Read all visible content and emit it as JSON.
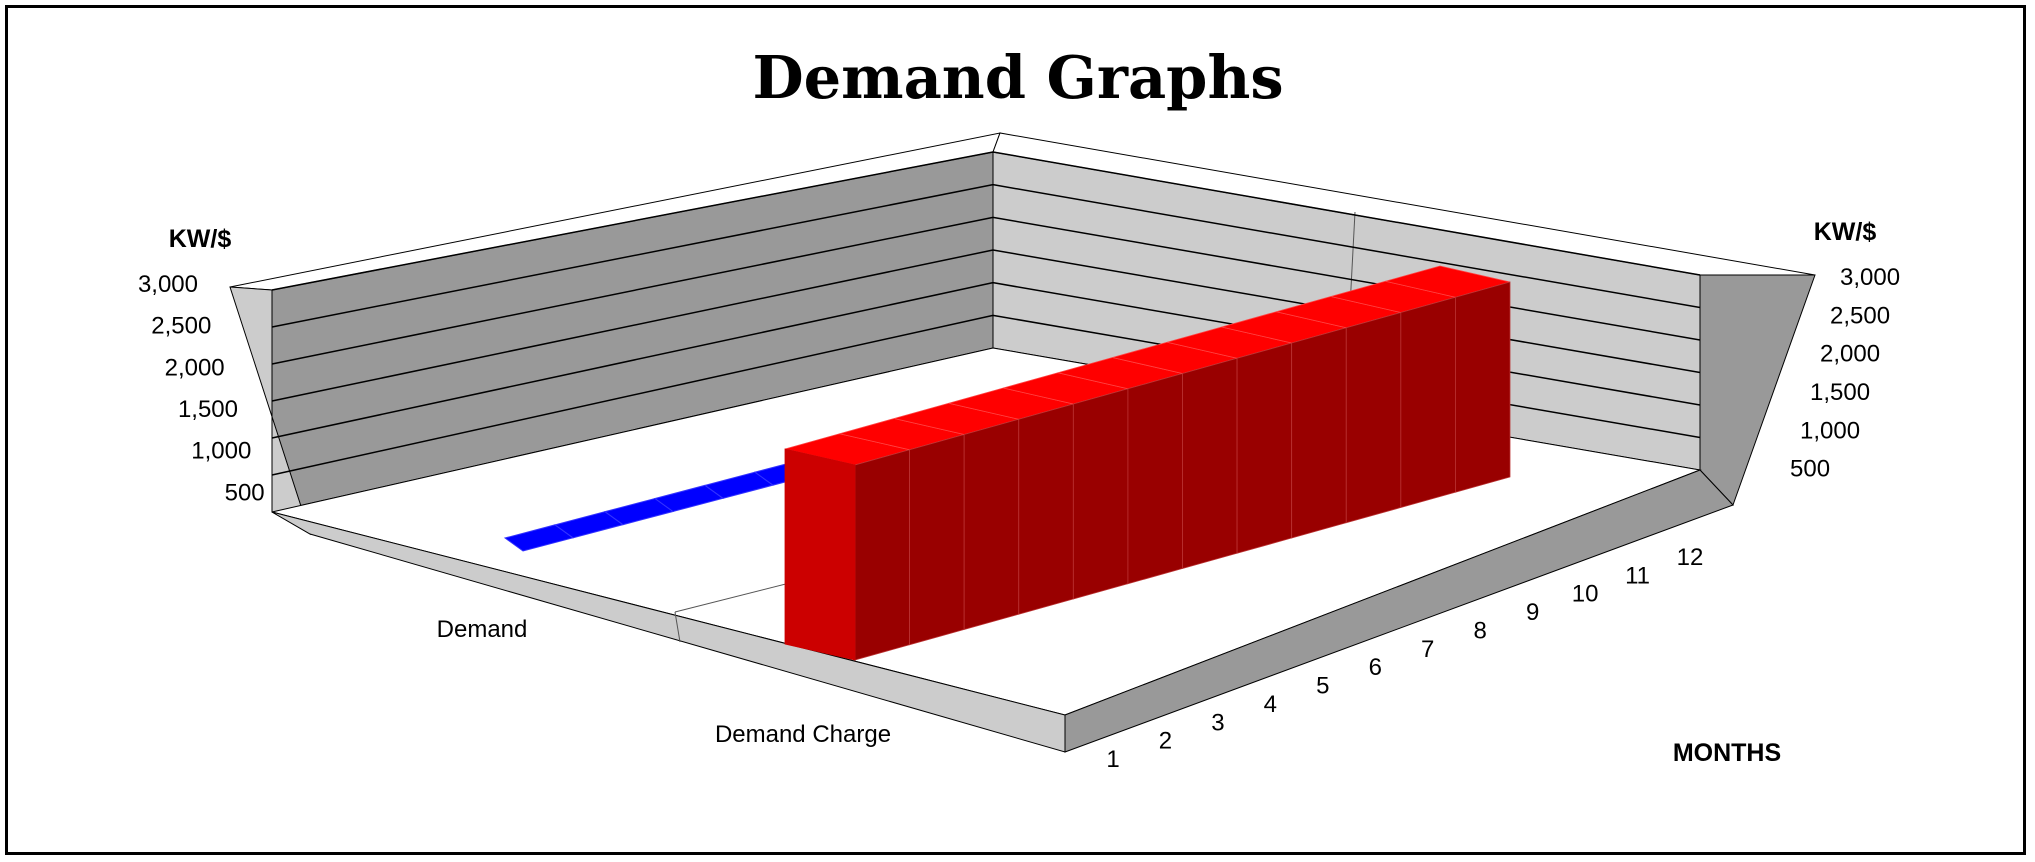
{
  "chart_data": {
    "type": "bar",
    "title": "Demand Graphs",
    "ylabel_left": "KW/$",
    "ylabel_right": "KW/$",
    "xlabel": "MONTHS",
    "y_ticks": [
      "3,000",
      "2,500",
      "2,000",
      "1,500",
      "1,000",
      "500"
    ],
    "y_tick_values": [
      3000,
      2500,
      2000,
      1500,
      1000,
      500
    ],
    "ylim": [
      0,
      3000
    ],
    "categories": [
      "1",
      "2",
      "3",
      "4",
      "5",
      "6",
      "7",
      "8",
      "9",
      "10",
      "11",
      "12"
    ],
    "series": [
      {
        "name": "Demand",
        "color": "#0000ff",
        "values": [
          30,
          30,
          30,
          30,
          30,
          30,
          30,
          30,
          30,
          30,
          30,
          30
        ]
      },
      {
        "name": "Demand Charge",
        "color": "#ff0000",
        "values": [
          2300,
          2300,
          2300,
          2300,
          2300,
          2300,
          2300,
          2300,
          2300,
          2300,
          2300,
          2300
        ]
      }
    ],
    "grid": true
  }
}
